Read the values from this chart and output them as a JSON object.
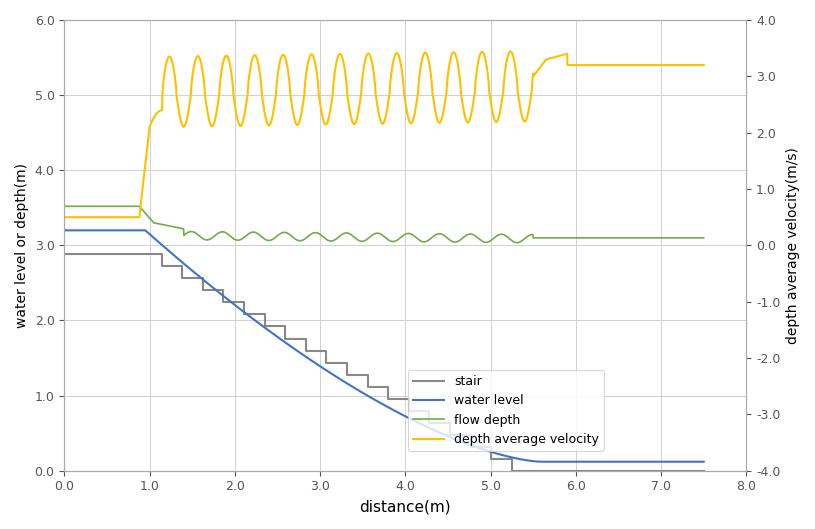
{
  "title": "",
  "xlabel": "distance(m)",
  "ylabel_left": "water level or depth(m)",
  "ylabel_right": "depth average velocity(m/s)",
  "xlim": [
    0.0,
    8.0
  ],
  "ylim_left": [
    0.0,
    6.0
  ],
  "ylim_right": [
    -4.0,
    4.0
  ],
  "colors": {
    "stair": "#888888",
    "water_level": "#4472c4",
    "flow_depth": "#70ad47",
    "velocity": "#ffc000"
  },
  "legend": [
    "stair",
    "water level",
    "flow depth",
    "depth average velocity"
  ],
  "background": "#ffffff",
  "grid_color": "#d0d0d0",
  "stair_x_flat_end": 0.9,
  "stair_x_stair_end": 5.25,
  "stair_y_start": 2.88,
  "stair_n_steps": 18
}
